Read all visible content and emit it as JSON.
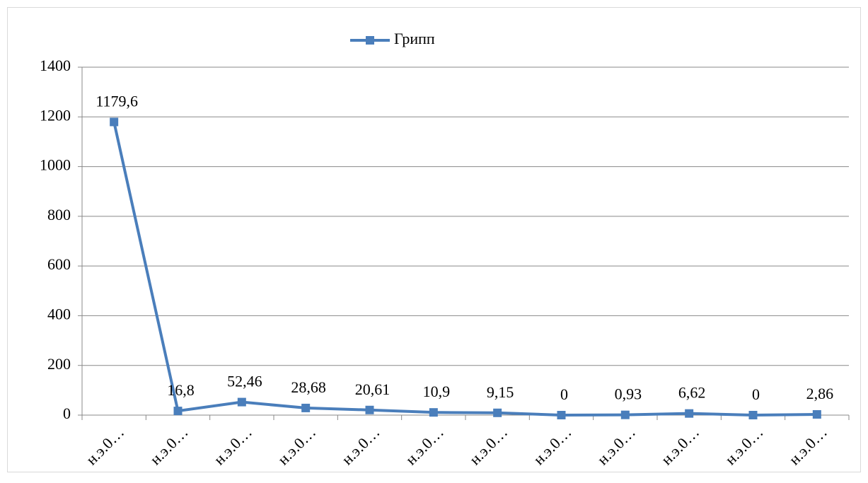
{
  "chart_data": {
    "type": "line",
    "categories": [
      "н.э.0…",
      "н.э.0…",
      "н.э.0…",
      "н.э.0…",
      "н.э.0…",
      "н.э.0…",
      "н.э.0…",
      "н.э.0…",
      "н.э.0…",
      "н.э.0…",
      "н.э.0…",
      "н.э.0…"
    ],
    "series": [
      {
        "name": "Грипп",
        "color": "#4a7ebb",
        "values": [
          1179.6,
          16.8,
          52.46,
          28.68,
          20.61,
          10.9,
          9.15,
          0,
          0.93,
          6.62,
          0,
          2.86
        ],
        "value_labels": [
          "1179,6",
          "16,8",
          "52,46",
          "28,68",
          "20,61",
          "10,9",
          "9,15",
          "0",
          "0,93",
          "6,62",
          "0",
          "2,86"
        ]
      }
    ],
    "ylim": [
      0,
      1400
    ],
    "yticks": [
      0,
      200,
      400,
      600,
      800,
      1000,
      1200,
      1400
    ],
    "grid": true,
    "legend": "top"
  }
}
